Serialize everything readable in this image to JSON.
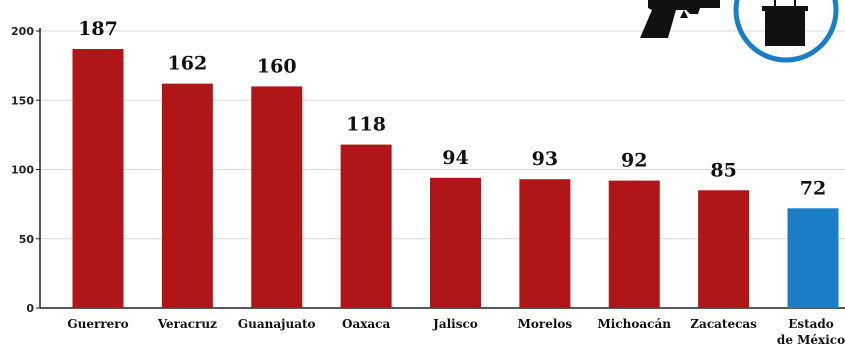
{
  "chart_data": {
    "type": "bar",
    "title": "",
    "xlabel": "",
    "ylabel": "",
    "categories": [
      "Guerrero",
      "Veracruz",
      "Guanajuato",
      "Oaxaca",
      "Jalisco",
      "Morelos",
      "Michoacán",
      "Zacatecas",
      "Estado de México"
    ],
    "category_lines": [
      [
        "Guerrero"
      ],
      [
        "Veracruz"
      ],
      [
        "Guanajuato"
      ],
      [
        "Oaxaca"
      ],
      [
        "Jalisco"
      ],
      [
        "Morelos"
      ],
      [
        "Michoacán"
      ],
      [
        "Zacatecas"
      ],
      [
        "Estado",
        "de México"
      ]
    ],
    "values": [
      187,
      162,
      160,
      118,
      94,
      93,
      92,
      85,
      72
    ],
    "value_labels": [
      "187",
      "162",
      "160",
      "118",
      "94",
      "93",
      "92",
      "85",
      "72"
    ],
    "ylim": [
      0,
      200
    ],
    "yticks": [
      0,
      50,
      100,
      150,
      200
    ],
    "ytick_labels": [
      "0",
      "50",
      "100",
      "150",
      "200"
    ],
    "grid": true,
    "colors": {
      "default_bar": "#b01517",
      "highlight_bar": "#1a7dc6",
      "highlight_category": "Estado de México",
      "grid": "#d9d9d9",
      "accent_circle": "#1a7dc6",
      "icon": "#111111"
    },
    "icons": [
      "gun-icon",
      "ballot-box-icon"
    ]
  }
}
